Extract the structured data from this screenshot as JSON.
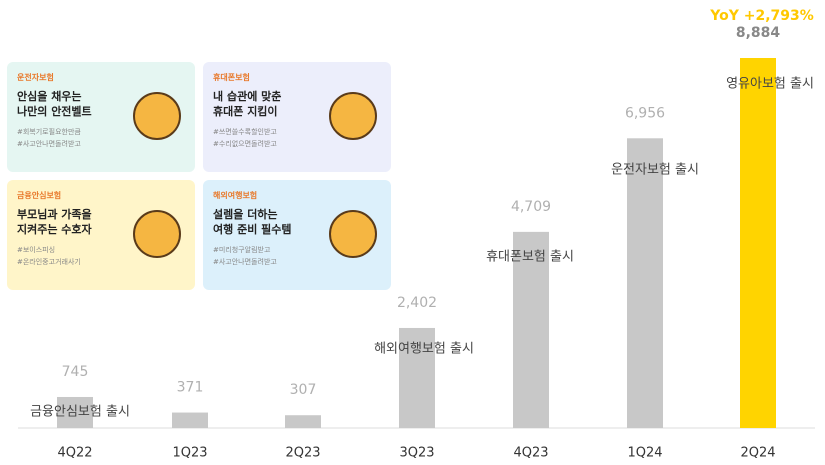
{
  "chart_data": {
    "type": "bar",
    "categories": [
      "4Q22",
      "1Q23",
      "2Q23",
      "3Q23",
      "4Q23",
      "1Q24",
      "2Q24"
    ],
    "values": [
      745,
      371,
      307,
      2402,
      4709,
      6956,
      8884
    ],
    "value_labels": [
      "745",
      "371",
      "307",
      "2,402",
      "4,709",
      "6,956",
      "8,884"
    ],
    "colors": [
      "#c8c8c8",
      "#c8c8c8",
      "#c8c8c8",
      "#c8c8c8",
      "#c8c8c8",
      "#c8c8c8",
      "#ffd400"
    ],
    "bar_notes": [
      "금융안심보험 출시",
      null,
      null,
      "해외여행보험 출시",
      "휴대폰보험 출시",
      "운전자보험 출시",
      "영유아보험 출시"
    ],
    "headline": "YoY +2,793%"
  },
  "cards": [
    {
      "tag": "운전자보험",
      "title": [
        "안심을 채우는",
        "나만의 안전벨트"
      ],
      "tags": [
        "#회복기로필요한만큼",
        "#사고안나면돌려받고"
      ],
      "color": "#e5f6f2"
    },
    {
      "tag": "휴대폰보험",
      "title": [
        "내 습관에 맞춘",
        "휴대폰 지킴이"
      ],
      "tags": [
        "#쓰면쓸수록할인받고",
        "#수리없으면돌려받고"
      ],
      "color": "#eceefb"
    },
    {
      "tag": "금융안심보험",
      "title": [
        "부모님과 가족을",
        "지켜주는 수호자"
      ],
      "tags": [
        "#보이스피싱",
        "#온라인중고거래사기"
      ],
      "color": "#fff5c9"
    },
    {
      "tag": "해외여행보험",
      "title": [
        "설렘을 더하는",
        "여행 준비 필수템"
      ],
      "tags": [
        "#미리청구알림받고",
        "#사고안나면돌려받고"
      ],
      "color": "#dcf0fb"
    }
  ]
}
